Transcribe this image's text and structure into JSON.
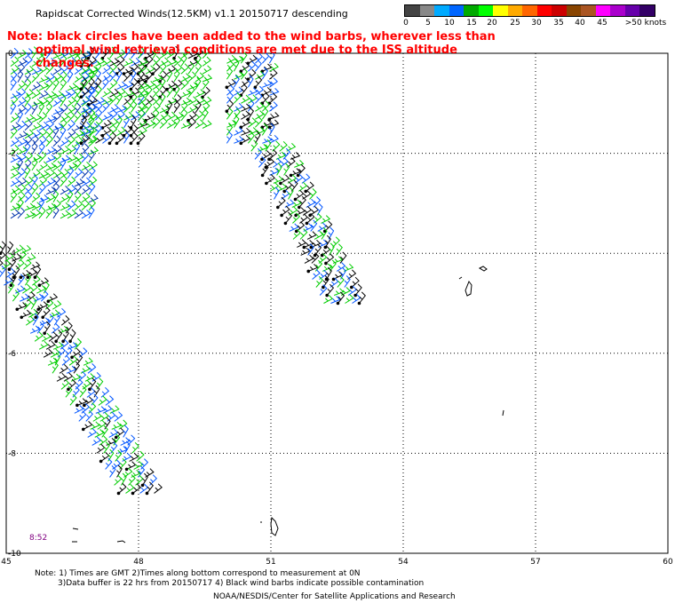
{
  "title": "Rapidscat Corrected Winds(12.5KM) v1.1 20150717 descending",
  "note": {
    "line1": "Note: black circles have been added to the wind barbs, wherever less than",
    "line2": "optimal wind retrieval conditions are met due to the ISS altitude changes."
  },
  "legend": {
    "colors": [
      "#444444",
      "#888888",
      "#00aaff",
      "#0066ff",
      "#00aa00",
      "#00ff00",
      "#ffff00",
      "#ffaa00",
      "#ff6600",
      "#ff0000",
      "#cc0000",
      "#884400",
      "#aa5522",
      "#ff00ff",
      "#aa00cc",
      "#6600aa",
      "#330066"
    ],
    "labels": [
      "0",
      "5",
      "10",
      "15",
      "20",
      "25",
      "30",
      "35",
      "40",
      "45",
      ">50 knots"
    ]
  },
  "x_ticks": [
    "45",
    "48",
    "51",
    "54",
    "57",
    "60"
  ],
  "y_ticks": [
    "0",
    "-2",
    "-4",
    "-6",
    "-8",
    "-10"
  ],
  "time_label": "8:52",
  "footer": {
    "line1": "Note: 1) Times are GMT 2)Times along bottom correspond to measurement at 0N",
    "line2": "3)Data buffer is 22 hrs from 20150717 4) Black wind barbs indicate possible contamination",
    "line3": "NOAA/NESDIS/Center for Satellite Applications and Research"
  },
  "map": {
    "lon_range": [
      45,
      60
    ],
    "lat_range": [
      -10,
      0
    ],
    "swaths": [
      {
        "name": "west-north",
        "lon": [
          45.1,
          46.9
        ],
        "lat": [
          -0.1,
          -3.3
        ],
        "colors": [
          "#00cc00",
          "#0055ff",
          "#00cc00",
          "#0033aa"
        ]
      },
      {
        "name": "west-mid",
        "lon": [
          46.7,
          48.0
        ],
        "lat": [
          -0.1,
          -1.8
        ],
        "colors": [
          "#000000",
          "#00cc00",
          "#0055ff"
        ]
      },
      {
        "name": "north-center",
        "lon": [
          48.0,
          49.6
        ],
        "lat": [
          -0.1,
          -1.5
        ],
        "colors": [
          "#00cc00",
          "#000000",
          "#00cc00"
        ]
      },
      {
        "name": "east-swath",
        "lon": [
          50.0,
          52.6
        ],
        "lat": [
          -0.2,
          -5.0
        ],
        "colors": [
          "#00cc00",
          "#000000",
          "#0055ff"
        ]
      },
      {
        "name": "south-swath",
        "lon": [
          45.0,
          48.0
        ],
        "lat": [
          -4.0,
          -8.8
        ],
        "colors": [
          "#0055ff",
          "#000000",
          "#00cc00"
        ]
      }
    ]
  }
}
